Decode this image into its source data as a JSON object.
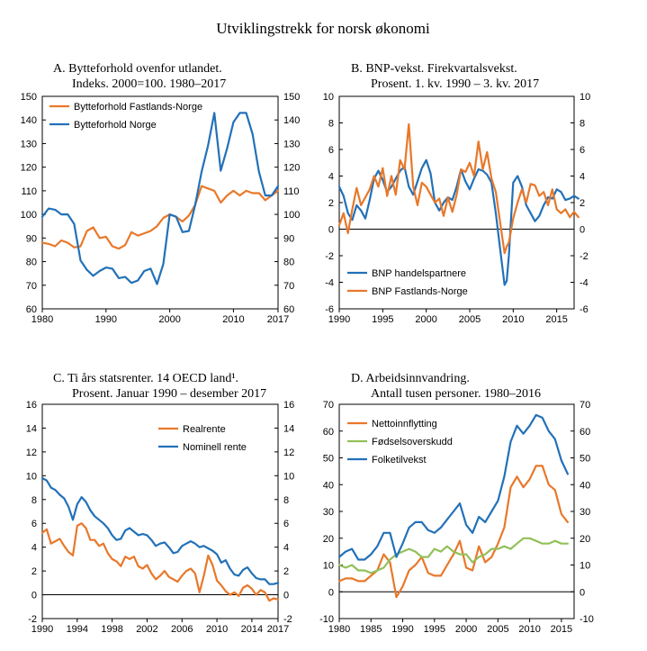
{
  "figure": {
    "title": "Utviklingstrekk for norsk økonomi"
  },
  "colors": {
    "orange": "#e8782a",
    "blue": "#2271b8",
    "green": "#92c05a"
  },
  "chart_data": [
    {
      "id": "A",
      "type": "line",
      "title_line1": "A.  Bytteforhold ovenfor utlandet.",
      "title_line2": "Indeks. 2000=100. 1980–2017",
      "xlim": [
        1980,
        2017
      ],
      "ylim": [
        60,
        150
      ],
      "xticks": [
        "1980",
        "1990",
        "2000",
        "2010",
        "2017"
      ],
      "xtick_values": [
        1980,
        1990,
        2000,
        2010,
        2017
      ],
      "yticks": [
        60,
        70,
        80,
        90,
        100,
        110,
        120,
        130,
        140,
        150
      ],
      "legend_position": "top-left",
      "series": [
        {
          "name": "Bytteforhold Fastlands-Norge",
          "color": "orange",
          "x": [
            1980,
            1981,
            1982,
            1983,
            1984,
            1985,
            1986,
            1987,
            1988,
            1989,
            1990,
            1991,
            1992,
            1993,
            1994,
            1995,
            1996,
            1997,
            1998,
            1999,
            2000,
            2001,
            2002,
            2003,
            2004,
            2005,
            2006,
            2007,
            2008,
            2009,
            2010,
            2011,
            2012,
            2013,
            2014,
            2015,
            2016,
            2017
          ],
          "values": [
            88,
            87.5,
            86.5,
            89,
            88,
            86,
            86.5,
            93,
            94.5,
            90,
            90.5,
            86.5,
            85.5,
            87,
            92.5,
            91,
            92,
            93,
            95,
            98.5,
            100,
            99,
            97,
            99.5,
            104,
            112,
            111,
            110,
            105,
            108,
            110,
            108,
            110,
            109,
            109,
            106,
            108,
            110
          ]
        },
        {
          "name": "Bytteforhold Norge",
          "color": "blue",
          "x": [
            1980,
            1981,
            1982,
            1983,
            1984,
            1985,
            1986,
            1987,
            1988,
            1989,
            1990,
            1991,
            1992,
            1993,
            1994,
            1995,
            1996,
            1997,
            1998,
            1999,
            2000,
            2001,
            2002,
            2003,
            2004,
            2005,
            2006,
            2007,
            2008,
            2009,
            2010,
            2011,
            2012,
            2013,
            2014,
            2015,
            2016,
            2017
          ],
          "values": [
            99,
            102.5,
            102,
            100,
            100,
            96,
            80.5,
            76.5,
            74,
            76,
            77.5,
            77,
            73,
            73.5,
            71,
            72,
            76,
            77,
            70.5,
            79,
            100,
            99,
            92.5,
            93,
            104,
            118,
            129,
            143,
            118.5,
            128,
            139,
            143,
            143,
            134,
            118,
            108,
            108,
            112
          ]
        }
      ]
    },
    {
      "id": "B",
      "type": "line",
      "title_line1": "B.  BNP-vekst. Firekvartalsvekst.",
      "title_line2": "Prosent. 1. kv. 1990 – 3. kv. 2017",
      "xlim": [
        1990,
        2017
      ],
      "ylim": [
        -6,
        10
      ],
      "xticks": [
        "1990",
        "1995",
        "2000",
        "2005",
        "2010",
        "2015"
      ],
      "xtick_values": [
        1990,
        1995,
        2000,
        2005,
        2010,
        2015
      ],
      "yticks": [
        -6,
        -4,
        -2,
        0,
        2,
        4,
        6,
        8,
        10
      ],
      "legend_position": "bottom-left",
      "series": [
        {
          "name": "BNP handelspartnere",
          "color": "blue",
          "x": [
            1990,
            1990.5,
            1991,
            1991.5,
            1992,
            1992.5,
            1993,
            1993.5,
            1994,
            1994.5,
            1995,
            1995.5,
            1996,
            1996.5,
            1997,
            1997.5,
            1998,
            1998.5,
            1999,
            1999.5,
            2000,
            2000.5,
            2001,
            2001.5,
            2002,
            2002.5,
            2003,
            2003.5,
            2004,
            2004.5,
            2005,
            2005.5,
            2006,
            2006.5,
            2007,
            2007.5,
            2008,
            2008.5,
            2009,
            2009.25,
            2009.5,
            2010,
            2010.5,
            2011,
            2011.5,
            2012,
            2012.5,
            2013,
            2013.5,
            2014,
            2014.5,
            2015,
            2015.5,
            2016,
            2016.5,
            2017,
            2017.5
          ],
          "values": [
            3.2,
            2.5,
            1.2,
            0.7,
            1.8,
            1.4,
            0.8,
            2.2,
            3.8,
            4.4,
            3.7,
            2.8,
            3.2,
            3.8,
            4.4,
            4.7,
            3.2,
            2.6,
            3.6,
            4.6,
            5.2,
            4.2,
            2.0,
            1.4,
            2.0,
            2.4,
            2.2,
            3.2,
            4.5,
            3.6,
            3.0,
            3.8,
            4.5,
            4.4,
            4.1,
            3.5,
            1.2,
            -1.5,
            -4.2,
            -3.9,
            -2.0,
            3.5,
            4.0,
            3.2,
            1.8,
            1.2,
            0.6,
            1.0,
            1.8,
            2.4,
            2.3,
            3.0,
            2.8,
            2.2,
            2.3,
            2.5,
            2.3
          ]
        },
        {
          "name": "BNP Fastlands-Norge",
          "color": "orange",
          "x": [
            1990,
            1990.5,
            1991,
            1991.5,
            1992,
            1992.5,
            1993,
            1993.5,
            1994,
            1994.5,
            1995,
            1995.5,
            1996,
            1996.5,
            1997,
            1997.5,
            1998,
            1998.5,
            1999,
            1999.5,
            2000,
            2000.5,
            2001,
            2001.5,
            2002,
            2002.5,
            2003,
            2003.5,
            2004,
            2004.5,
            2005,
            2005.5,
            2006,
            2006.5,
            2007,
            2007.5,
            2008,
            2008.5,
            2009,
            2009.25,
            2009.5,
            2010,
            2010.5,
            2011,
            2011.5,
            2012,
            2012.5,
            2013,
            2013.5,
            2014,
            2014.5,
            2015,
            2015.5,
            2016,
            2016.5,
            2017,
            2017.5
          ],
          "values": [
            0.3,
            1.2,
            -0.3,
            1.5,
            3.1,
            1.8,
            2.4,
            3.0,
            4.0,
            3.2,
            4.6,
            2.5,
            4.0,
            2.6,
            5.2,
            4.5,
            7.9,
            3.2,
            1.8,
            3.5,
            3.2,
            2.6,
            2.0,
            2.3,
            1.0,
            2.4,
            1.3,
            2.6,
            4.5,
            4.3,
            5.0,
            4.0,
            6.6,
            4.5,
            5.8,
            3.8,
            2.8,
            0.5,
            -1.8,
            -1.3,
            -1.0,
            0.8,
            2.0,
            3.0,
            2.0,
            3.4,
            3.3,
            2.5,
            2.8,
            1.8,
            3.0,
            1.5,
            1.2,
            1.5,
            0.9,
            1.3,
            0.9
          ]
        }
      ]
    },
    {
      "id": "C",
      "type": "line",
      "title_line1": "C.  Ti års statsrenter. 14 OECD land¹.",
      "title_line2": "Prosent. Januar 1990 – desember 2017",
      "xlim": [
        1990,
        2017
      ],
      "ylim": [
        -2,
        16
      ],
      "xticks": [
        "1990",
        "1994",
        "1998",
        "2002",
        "2006",
        "2010",
        "2014",
        "2017"
      ],
      "xtick_values": [
        1990,
        1994,
        1998,
        2002,
        2006,
        2010,
        2014,
        2017
      ],
      "yticks": [
        -2,
        0,
        2,
        4,
        6,
        8,
        10,
        12,
        14,
        16
      ],
      "legend_position": "top-right",
      "series": [
        {
          "name": "Realrente",
          "color": "orange",
          "x": [
            1990,
            1990.5,
            1991,
            1991.5,
            1992,
            1992.5,
            1993,
            1993.5,
            1994,
            1994.5,
            1995,
            1995.5,
            1996,
            1996.5,
            1997,
            1997.5,
            1998,
            1998.5,
            1999,
            1999.5,
            2000,
            2000.5,
            2001,
            2001.5,
            2002,
            2002.5,
            2003,
            2003.5,
            2004,
            2004.5,
            2005,
            2005.5,
            2006,
            2006.5,
            2007,
            2007.5,
            2008,
            2008.5,
            2009,
            2009.5,
            2010,
            2010.5,
            2011,
            2011.5,
            2012,
            2012.5,
            2013,
            2013.5,
            2014,
            2014.5,
            2015,
            2015.5,
            2016,
            2016.5,
            2017
          ],
          "values": [
            5.2,
            5.5,
            4.3,
            4.5,
            4.7,
            4.1,
            3.6,
            3.3,
            5.8,
            6.0,
            5.6,
            4.6,
            4.6,
            4.1,
            4.3,
            3.5,
            3.0,
            2.8,
            2.4,
            3.2,
            3.0,
            3.2,
            2.4,
            2.2,
            2.5,
            1.8,
            1.3,
            1.6,
            2.0,
            1.5,
            1.3,
            1.1,
            1.6,
            2.0,
            2.2,
            1.8,
            0.2,
            1.6,
            3.3,
            2.5,
            1.2,
            0.8,
            0.3,
            0.0,
            0.2,
            -0.1,
            0.6,
            0.8,
            0.5,
            0.0,
            0.4,
            0.2,
            -0.5,
            -0.3,
            -0.4
          ]
        },
        {
          "name": "Nominell rente",
          "color": "blue",
          "x": [
            1990,
            1990.5,
            1991,
            1991.5,
            1992,
            1992.5,
            1993,
            1993.5,
            1994,
            1994.5,
            1995,
            1995.5,
            1996,
            1996.5,
            1997,
            1997.5,
            1998,
            1998.5,
            1999,
            1999.5,
            2000,
            2000.5,
            2001,
            2001.5,
            2002,
            2002.5,
            2003,
            2003.5,
            2004,
            2004.5,
            2005,
            2005.5,
            2006,
            2006.5,
            2007,
            2007.5,
            2008,
            2008.5,
            2009,
            2009.5,
            2010,
            2010.5,
            2011,
            2011.5,
            2012,
            2012.5,
            2013,
            2013.5,
            2014,
            2014.5,
            2015,
            2015.5,
            2016,
            2016.5,
            2017
          ],
          "values": [
            9.8,
            9.6,
            9.0,
            8.8,
            8.4,
            8.1,
            7.4,
            6.3,
            7.6,
            8.2,
            7.8,
            7.1,
            6.6,
            6.3,
            6.0,
            5.6,
            5.0,
            4.6,
            4.7,
            5.4,
            5.6,
            5.3,
            5.0,
            5.1,
            5.0,
            4.6,
            4.1,
            4.3,
            4.4,
            4.0,
            3.5,
            3.6,
            4.1,
            4.3,
            4.5,
            4.3,
            4.0,
            4.1,
            3.9,
            3.7,
            3.4,
            2.7,
            2.9,
            2.2,
            1.7,
            1.6,
            2.1,
            2.3,
            1.8,
            1.4,
            1.3,
            1.3,
            0.9,
            0.9,
            1.0
          ]
        }
      ]
    },
    {
      "id": "D",
      "type": "line",
      "title_line1": "D.  Arbeidsinnvandring.",
      "title_line2": "Antall tusen personer. 1980–2016",
      "xlim": [
        1980,
        2017
      ],
      "ylim": [
        -10,
        70
      ],
      "xticks": [
        "1980",
        "1985",
        "1990",
        "1995",
        "2000",
        "2005",
        "2010",
        "2015"
      ],
      "xtick_values": [
        1980,
        1985,
        1990,
        1995,
        2000,
        2005,
        2010,
        2015
      ],
      "yticks": [
        -10,
        0,
        10,
        20,
        30,
        40,
        50,
        60,
        70
      ],
      "legend_position": "top-left",
      "series": [
        {
          "name": "Nettoinnflytting",
          "color": "orange",
          "x": [
            1980,
            1981,
            1982,
            1983,
            1984,
            1985,
            1986,
            1987,
            1988,
            1989,
            1990,
            1991,
            1992,
            1993,
            1994,
            1995,
            1996,
            1997,
            1998,
            1999,
            2000,
            2001,
            2002,
            2003,
            2004,
            2005,
            2006,
            2007,
            2008,
            2009,
            2010,
            2011,
            2012,
            2013,
            2014,
            2015,
            2016
          ],
          "values": [
            4,
            5,
            5,
            4,
            4,
            6,
            8,
            14,
            11,
            -2,
            2,
            8,
            10,
            13,
            7,
            6,
            6,
            10,
            14,
            19,
            9,
            8,
            17,
            11,
            13,
            18,
            24,
            39,
            43,
            39,
            42,
            47,
            47,
            40,
            38,
            29,
            26
          ]
        },
        {
          "name": "Fødselsoverskudd",
          "color": "green",
          "x": [
            1980,
            1981,
            1982,
            1983,
            1984,
            1985,
            1986,
            1987,
            1988,
            1989,
            1990,
            1991,
            1992,
            1993,
            1994,
            1995,
            1996,
            1997,
            1998,
            1999,
            2000,
            2001,
            2002,
            2003,
            2004,
            2005,
            2006,
            2007,
            2008,
            2009,
            2010,
            2011,
            2012,
            2013,
            2014,
            2015,
            2016
          ],
          "values": [
            10,
            9,
            10,
            8,
            8,
            7,
            8,
            9,
            12,
            14,
            15,
            16,
            15,
            13,
            13,
            16,
            15,
            17,
            15,
            14,
            14,
            11,
            13,
            14,
            16,
            16,
            17,
            16,
            18,
            20,
            20,
            19,
            18,
            18,
            19,
            18,
            18
          ]
        },
        {
          "name": "Folketilvekst",
          "color": "blue",
          "x": [
            1980,
            1981,
            1982,
            1983,
            1984,
            1985,
            1986,
            1987,
            1988,
            1989,
            1990,
            1991,
            1992,
            1993,
            1994,
            1995,
            1996,
            1997,
            1998,
            1999,
            2000,
            2001,
            2002,
            2003,
            2004,
            2005,
            2006,
            2007,
            2008,
            2009,
            2010,
            2011,
            2012,
            2013,
            2014,
            2015,
            2016
          ],
          "values": [
            13,
            15,
            16,
            12,
            12,
            14,
            17,
            22,
            22,
            13,
            18,
            24,
            26,
            26,
            23,
            22,
            24,
            27,
            30,
            33,
            25,
            22,
            28,
            26,
            30,
            34,
            43,
            56,
            62,
            59,
            62,
            66,
            65,
            60,
            57,
            49,
            44
          ]
        }
      ]
    }
  ]
}
